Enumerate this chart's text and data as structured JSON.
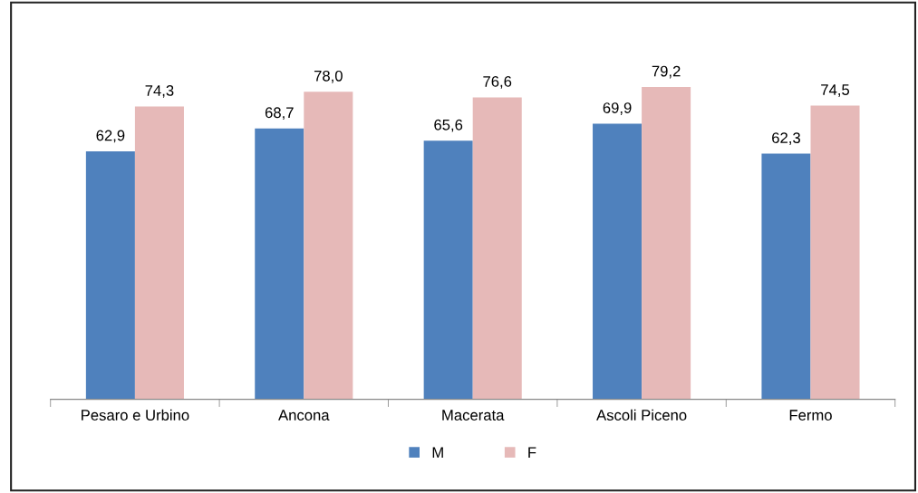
{
  "chart_data": {
    "type": "bar",
    "categories": [
      "Pesaro e Urbino",
      "Ancona",
      "Macerata",
      "Ascoli Piceno",
      "Fermo"
    ],
    "series": [
      {
        "name": "M",
        "color": "#4f81bd",
        "values": [
          62.9,
          68.7,
          65.6,
          69.9,
          62.3
        ],
        "value_labels": [
          "62,9",
          "68,7",
          "65,6",
          "69,9",
          "62,3"
        ]
      },
      {
        "name": "F",
        "color": "#e6b9b8",
        "values": [
          74.3,
          78.0,
          76.6,
          79.2,
          74.5
        ],
        "value_labels": [
          "74,3",
          "78,0",
          "76,6",
          "79,2",
          "74,5"
        ]
      }
    ],
    "legend": "bottom",
    "grid": false,
    "tick_labels": "x"
  }
}
